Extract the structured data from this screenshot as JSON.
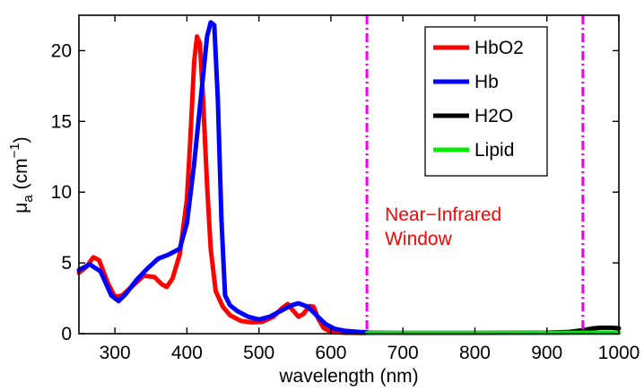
{
  "chart_data": {
    "type": "line",
    "xlabel": "wavelength (nm)",
    "ylabel": {
      "base": "μ",
      "base_sub": "a",
      "unit_open": " (cm",
      "unit_sup": "−1",
      "unit_close": ")"
    },
    "xlim": [
      250,
      1000
    ],
    "ylim": [
      0,
      22.5
    ],
    "x_ticks": [
      300,
      400,
      500,
      600,
      700,
      800,
      900,
      1000
    ],
    "y_ticks": [
      0,
      5,
      10,
      15,
      20
    ],
    "grid": false,
    "legend_position": "top-right",
    "series": [
      {
        "name": "HbO2",
        "color": "#ff0000",
        "points": [
          [
            250,
            4.3
          ],
          [
            260,
            4.7
          ],
          [
            270,
            5.4
          ],
          [
            278,
            5.2
          ],
          [
            290,
            3.6
          ],
          [
            300,
            2.6
          ],
          [
            310,
            2.7
          ],
          [
            325,
            3.4
          ],
          [
            340,
            4.1
          ],
          [
            355,
            4.0
          ],
          [
            365,
            3.5
          ],
          [
            372,
            3.3
          ],
          [
            380,
            3.9
          ],
          [
            390,
            5.6
          ],
          [
            400,
            9.5
          ],
          [
            405,
            14.0
          ],
          [
            410,
            19.2
          ],
          [
            414,
            21.0
          ],
          [
            418,
            20.5
          ],
          [
            422,
            17.0
          ],
          [
            428,
            10.5
          ],
          [
            433,
            6.0
          ],
          [
            440,
            3.0
          ],
          [
            450,
            1.9
          ],
          [
            460,
            1.3
          ],
          [
            475,
            0.9
          ],
          [
            490,
            0.8
          ],
          [
            505,
            0.85
          ],
          [
            520,
            1.2
          ],
          [
            532,
            1.8
          ],
          [
            540,
            2.1
          ],
          [
            548,
            1.6
          ],
          [
            555,
            1.2
          ],
          [
            562,
            1.4
          ],
          [
            570,
            1.95
          ],
          [
            576,
            1.9
          ],
          [
            582,
            1.1
          ],
          [
            590,
            0.4
          ],
          [
            600,
            0.12
          ],
          [
            620,
            0.06
          ],
          [
            650,
            0.04
          ]
        ]
      },
      {
        "name": "Hb",
        "color": "#0000ff",
        "points": [
          [
            250,
            4.5
          ],
          [
            265,
            4.9
          ],
          [
            280,
            4.4
          ],
          [
            295,
            2.7
          ],
          [
            305,
            2.3
          ],
          [
            315,
            2.8
          ],
          [
            330,
            3.8
          ],
          [
            345,
            4.6
          ],
          [
            360,
            5.3
          ],
          [
            375,
            5.6
          ],
          [
            390,
            6.0
          ],
          [
            400,
            7.8
          ],
          [
            410,
            12.0
          ],
          [
            420,
            17.0
          ],
          [
            428,
            21.0
          ],
          [
            433,
            22.0
          ],
          [
            438,
            21.8
          ],
          [
            443,
            16.5
          ],
          [
            448,
            8.0
          ],
          [
            453,
            2.7
          ],
          [
            460,
            2.0
          ],
          [
            470,
            1.6
          ],
          [
            485,
            1.2
          ],
          [
            500,
            1.0
          ],
          [
            515,
            1.2
          ],
          [
            530,
            1.6
          ],
          [
            545,
            2.0
          ],
          [
            555,
            2.15
          ],
          [
            568,
            1.9
          ],
          [
            580,
            1.3
          ],
          [
            592,
            0.7
          ],
          [
            605,
            0.35
          ],
          [
            620,
            0.2
          ],
          [
            640,
            0.12
          ],
          [
            650,
            0.1
          ]
        ]
      },
      {
        "name": "H2O",
        "color": "#000000",
        "points": [
          [
            650,
            0.06
          ],
          [
            700,
            0.05
          ],
          [
            800,
            0.05
          ],
          [
            900,
            0.07
          ],
          [
            930,
            0.12
          ],
          [
            950,
            0.25
          ],
          [
            965,
            0.38
          ],
          [
            975,
            0.42
          ],
          [
            990,
            0.42
          ],
          [
            1000,
            0.38
          ]
        ]
      },
      {
        "name": "Lipid",
        "color": "#00ee00",
        "points": [
          [
            650,
            0.04
          ],
          [
            700,
            0.04
          ],
          [
            800,
            0.04
          ],
          [
            900,
            0.05
          ],
          [
            950,
            0.06
          ],
          [
            1000,
            0.06
          ]
        ]
      }
    ],
    "vertical_lines": [
      {
        "x": 650,
        "color": "#ee00ee",
        "style": "dash-dot"
      },
      {
        "x": 950,
        "color": "#ee00ee",
        "style": "dash-dot"
      }
    ],
    "annotations": [
      {
        "lines": [
          "Near−Infrared",
          "Window"
        ],
        "color": "#ff0000",
        "x": 660,
        "y": 8.0
      }
    ]
  }
}
